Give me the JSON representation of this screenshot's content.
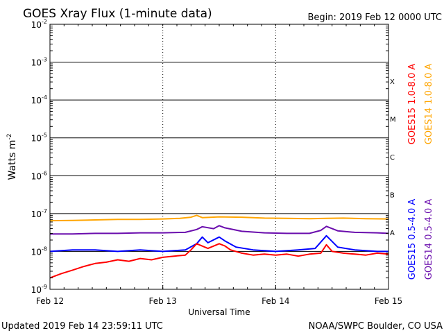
{
  "header": {
    "title": "GOES Xray Flux (1-minute data)",
    "begin_label": "Begin:  2019 Feb 12 0000 UTC"
  },
  "footer": {
    "updated": "Updated 2019 Feb 14 23:59:11 UTC",
    "source": "NOAA/SWPC Boulder, CO USA"
  },
  "colors": {
    "goes15_long": "#ff0000",
    "goes14_long": "#ffa500",
    "goes15_short": "#0000ff",
    "goes14_short": "#6a0dad"
  },
  "chart_data": {
    "type": "line",
    "title": "GOES Xray Flux (1-minute data)",
    "xlabel": "Universal Time",
    "ylabel": "Watts m",
    "ylabel_sup": "-2",
    "y_scale": "log",
    "ylim": [
      1e-09,
      0.01
    ],
    "xlim": [
      0,
      3
    ],
    "x_unit": "days since 2019 Feb 12 0000 UTC",
    "x_ticks": [
      {
        "value": 0,
        "label": "Feb 12"
      },
      {
        "value": 1,
        "label": "Feb 13"
      },
      {
        "value": 2,
        "label": "Feb 14"
      },
      {
        "value": 3,
        "label": "Feb 15"
      }
    ],
    "y_ticks": [
      {
        "exp": -2,
        "base": "10",
        "sup": "-2"
      },
      {
        "exp": -3,
        "base": "10",
        "sup": "-3"
      },
      {
        "exp": -4,
        "base": "10",
        "sup": "-4"
      },
      {
        "exp": -5,
        "base": "10",
        "sup": "-5"
      },
      {
        "exp": -6,
        "base": "10",
        "sup": "-6"
      },
      {
        "exp": -7,
        "base": "10",
        "sup": "-7"
      },
      {
        "exp": -8,
        "base": "10",
        "sup": "-8"
      },
      {
        "exp": -9,
        "base": "10",
        "sup": "-9"
      }
    ],
    "flare_classes": [
      {
        "label": "X",
        "exp": -3.5
      },
      {
        "label": "M",
        "exp": -4.5
      },
      {
        "label": "C",
        "exp": -5.5
      },
      {
        "label": "B",
        "exp": -6.5
      },
      {
        "label": "A",
        "exp": -7.5
      }
    ],
    "grid": true,
    "legend_right": [
      {
        "name": "GOES15 1.0-8.0 A",
        "color": "#ff0000"
      },
      {
        "name": "GOES14 1.0-8.0 A",
        "color": "#ffa500"
      },
      {
        "name": "GOES15 0.5-4.0 A",
        "color": "#0000ff"
      },
      {
        "name": "GOES14 0.5-4.0 A",
        "color": "#6a0dad"
      }
    ],
    "series": [
      {
        "name": "GOES14 1.0-8.0 A",
        "color": "#ffa500",
        "x": [
          0,
          0.2,
          0.4,
          0.6,
          0.8,
          1.0,
          1.15,
          1.25,
          1.3,
          1.35,
          1.5,
          1.7,
          1.9,
          2.1,
          2.3,
          2.45,
          2.6,
          2.8,
          3.0
        ],
        "y": [
          6.5e-08,
          6.6e-08,
          6.8e-08,
          7e-08,
          7e-08,
          7.2e-08,
          7.5e-08,
          8e-08,
          9e-08,
          7.8e-08,
          8.2e-08,
          8e-08,
          7.6e-08,
          7.5e-08,
          7.3e-08,
          7.5e-08,
          7.6e-08,
          7.3e-08,
          7.2e-08
        ]
      },
      {
        "name": "GOES14 0.5-4.0 A",
        "color": "#6a0dad",
        "x": [
          0,
          0.2,
          0.4,
          0.6,
          0.8,
          1.0,
          1.2,
          1.3,
          1.35,
          1.45,
          1.5,
          1.55,
          1.7,
          1.9,
          2.1,
          2.3,
          2.4,
          2.45,
          2.55,
          2.7,
          2.9,
          3.0
        ],
        "y": [
          2.9e-08,
          2.9e-08,
          3e-08,
          3e-08,
          3.1e-08,
          3.1e-08,
          3.2e-08,
          3.8e-08,
          4.5e-08,
          4e-08,
          4.8e-08,
          4.2e-08,
          3.4e-08,
          3.1e-08,
          3e-08,
          3e-08,
          3.6e-08,
          4.6e-08,
          3.5e-08,
          3.2e-08,
          3.1e-08,
          3e-08
        ]
      },
      {
        "name": "GOES15 0.5-4.0 A",
        "color": "#0000ff",
        "x": [
          0,
          0.2,
          0.4,
          0.6,
          0.8,
          1.0,
          1.2,
          1.3,
          1.35,
          1.4,
          1.5,
          1.55,
          1.65,
          1.8,
          2.0,
          2.2,
          2.35,
          2.45,
          2.55,
          2.7,
          2.9,
          3.0
        ],
        "y": [
          1e-08,
          1.1e-08,
          1.1e-08,
          1e-08,
          1.1e-08,
          1e-08,
          1.1e-08,
          1.6e-08,
          2.4e-08,
          1.7e-08,
          2.4e-08,
          1.9e-08,
          1.3e-08,
          1.1e-08,
          1e-08,
          1.1e-08,
          1.2e-08,
          2.6e-08,
          1.3e-08,
          1.1e-08,
          1e-08,
          1e-08
        ]
      },
      {
        "name": "GOES15 1.0-8.0 A",
        "color": "#ff0000",
        "x": [
          0,
          0.1,
          0.2,
          0.3,
          0.4,
          0.5,
          0.6,
          0.7,
          0.8,
          0.9,
          1.0,
          1.1,
          1.2,
          1.25,
          1.3,
          1.4,
          1.5,
          1.55,
          1.6,
          1.7,
          1.8,
          1.9,
          2.0,
          2.1,
          2.2,
          2.3,
          2.4,
          2.45,
          2.5,
          2.6,
          2.7,
          2.8,
          2.9,
          3.0
        ],
        "y": [
          2e-09,
          2.6e-09,
          3.2e-09,
          4e-09,
          4.8e-09,
          5.2e-09,
          6e-09,
          5.5e-09,
          6.5e-09,
          6e-09,
          7e-09,
          7.5e-09,
          8e-09,
          1.1e-08,
          1.6e-08,
          1.2e-08,
          1.6e-08,
          1.4e-08,
          1.1e-08,
          9e-09,
          8e-09,
          8.5e-09,
          8e-09,
          8.5e-09,
          7.5e-09,
          8.5e-09,
          9e-09,
          1.5e-08,
          1e-08,
          9e-09,
          8.5e-09,
          8e-09,
          9e-09,
          8.5e-09
        ]
      }
    ]
  }
}
